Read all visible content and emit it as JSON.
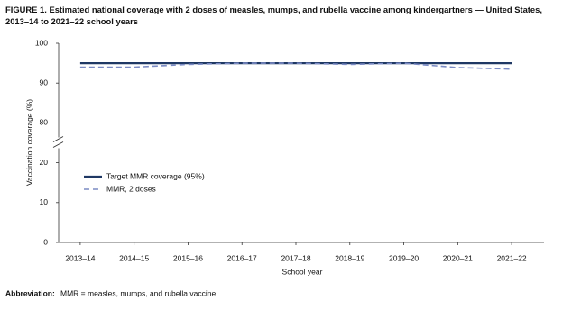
{
  "chart_data": {
    "type": "line",
    "title": "FIGURE 1. Estimated national coverage with 2 doses of measles, mumps, and rubella vaccine among kindergartners — United States, 2013–14 to 2021–22 school years",
    "x_label": "School year",
    "y_label": "Vaccination coverage (%)",
    "categories": [
      "2013–14",
      "2014–15",
      "2015–16",
      "2016–17",
      "2017–18",
      "2018–19",
      "2019–20",
      "2020–21",
      "2021–22"
    ],
    "series": [
      {
        "name": "Target MMR coverage (95%)",
        "color": "#1f3864",
        "dash": false,
        "values": [
          95,
          95,
          95,
          95,
          95,
          95,
          95,
          95,
          95
        ]
      },
      {
        "name": "MMR, 2 doses",
        "color": "#7b8bc4",
        "dash": true,
        "values": [
          94.0,
          94.0,
          94.7,
          95.0,
          95.0,
          94.7,
          95.0,
          93.9,
          93.5
        ]
      }
    ],
    "ylim": [
      0,
      100
    ],
    "axis_break": [
      25,
      75
    ],
    "yticks": [
      0,
      10,
      20,
      80,
      90,
      100
    ],
    "legend": "lower left",
    "footnote_label": "Abbreviation:",
    "footnote": "MMR = measles, mumps, and rubella vaccine."
  }
}
